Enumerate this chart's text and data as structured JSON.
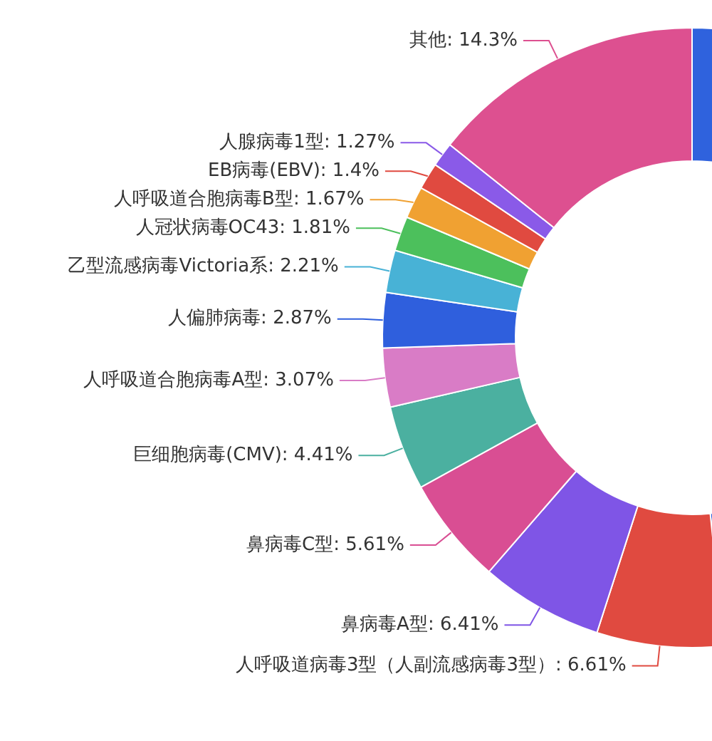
{
  "chart_data": {
    "type": "donut",
    "categories": [
      null,
      "人呼吸道病毒3型（人副流感病毒3型）",
      "鼻病毒A型",
      "鼻病毒C型",
      "巨细胞病毒(CMV)",
      "人呼吸道合胞病毒A型",
      "人偏肺病毒",
      "乙型流感病毒Victoria系",
      "人冠状病毒OC43",
      "人呼吸道合胞病毒B型",
      "EB病毒(EBV)",
      "人腺病毒1型",
      "其他"
    ],
    "values": [
      48.36,
      6.61,
      6.41,
      5.61,
      4.41,
      3.07,
      2.87,
      2.21,
      1.81,
      1.67,
      1.4,
      1.27,
      14.3
    ],
    "value_labels": [
      null,
      "6.61%",
      "6.41%",
      "5.61%",
      "4.41%",
      "3.07%",
      "2.87%",
      "2.21%",
      "1.81%",
      "1.67%",
      "1.4%",
      "1.27%",
      "14.3%"
    ],
    "colors": [
      "#2f62dd",
      "#e04a40",
      "#7f55e6",
      "#d94e93",
      "#4bb0a0",
      "#d97cc6",
      "#2f5fdd",
      "#48b2d6",
      "#4cc05c",
      "#f0a132",
      "#e04a40",
      "#8a5ae8",
      "#dd5090"
    ],
    "legend": false
  }
}
